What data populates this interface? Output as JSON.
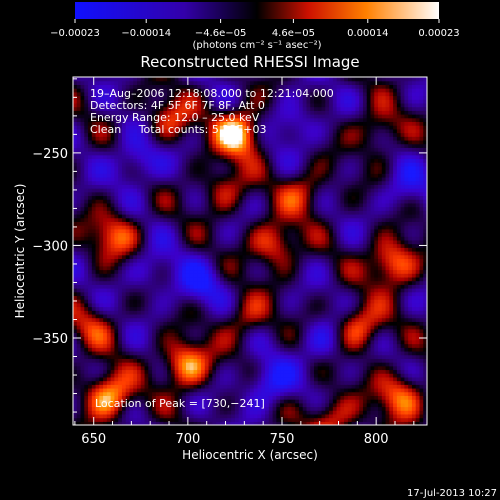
{
  "chart_data": {
    "type": "heatmap",
    "title": "Reconstructed RHESSI Image",
    "xlabel": "Heliocentric X (arcsec)",
    "ylabel": "Heliocentric Y (arcsec)",
    "xlim": [
      639,
      827
    ],
    "ylim": [
      -397,
      -209
    ],
    "x_ticks": [
      650,
      700,
      750,
      800
    ],
    "y_ticks": [
      -350,
      -300,
      -250
    ],
    "x_tick_labels": [
      "650",
      "700",
      "750",
      "800"
    ],
    "y_tick_labels": [
      "−350",
      "−300",
      "−250"
    ],
    "colorbar": {
      "ticks": [
        -0.00023,
        -0.00014,
        -4.6e-05,
        4.6e-05,
        0.00014,
        0.00023
      ],
      "tick_labels": [
        "−0.00023",
        "−0.00014",
        "−4.6e−05",
        "4.6e−05",
        "0.00014",
        "0.00023"
      ],
      "units_label": "(photons cm⁻² s⁻¹ asec⁻²)",
      "range": [
        -0.00023,
        0.00023
      ]
    },
    "annotations": [
      "19–Aug–2006 12:18:08.000 to 12:21:04.000",
      "Detectors: 4F 5F 6F 7F 8F, Att 0",
      "Energy Range: 12.0 – 25.0 keV",
      "Clean     Total counts: 5.23E+03"
    ],
    "peak_text": "Location of Peak = [730,−241]",
    "hotspots": [
      {
        "x": 726,
        "y": -240,
        "v": 1.0
      },
      {
        "x": 657,
        "y": -382,
        "v": 0.9
      },
      {
        "x": 698,
        "y": -365,
        "v": 0.85
      },
      {
        "x": 808,
        "y": -310,
        "v": 0.8
      },
      {
        "x": 660,
        "y": -295,
        "v": 0.6
      },
      {
        "x": 745,
        "y": -300,
        "v": 0.65
      },
      {
        "x": 690,
        "y": -232,
        "v": 0.5
      },
      {
        "x": 812,
        "y": -382,
        "v": 0.7
      },
      {
        "x": 775,
        "y": -395,
        "v": 0.6
      },
      {
        "x": 760,
        "y": -272,
        "v": 0.5
      },
      {
        "x": 730,
        "y": -340,
        "v": 0.45
      },
      {
        "x": 790,
        "y": -345,
        "v": 0.7
      },
      {
        "x": 800,
        "y": -238,
        "v": 0.45
      },
      {
        "x": 648,
        "y": -345,
        "v": 0.4
      },
      {
        "x": 718,
        "y": -270,
        "v": 0.45
      },
      {
        "x": 672,
        "y": -255,
        "v": -0.5
      },
      {
        "x": 755,
        "y": -235,
        "v": -0.4
      },
      {
        "x": 705,
        "y": -322,
        "v": -0.45
      },
      {
        "x": 772,
        "y": -352,
        "v": -0.4
      },
      {
        "x": 742,
        "y": -375,
        "v": -0.55
      },
      {
        "x": 680,
        "y": -315,
        "v": -0.3
      },
      {
        "x": 815,
        "y": -270,
        "v": -0.35
      }
    ]
  },
  "footer": {
    "timestamp": "17-Jul-2013 10:27"
  }
}
